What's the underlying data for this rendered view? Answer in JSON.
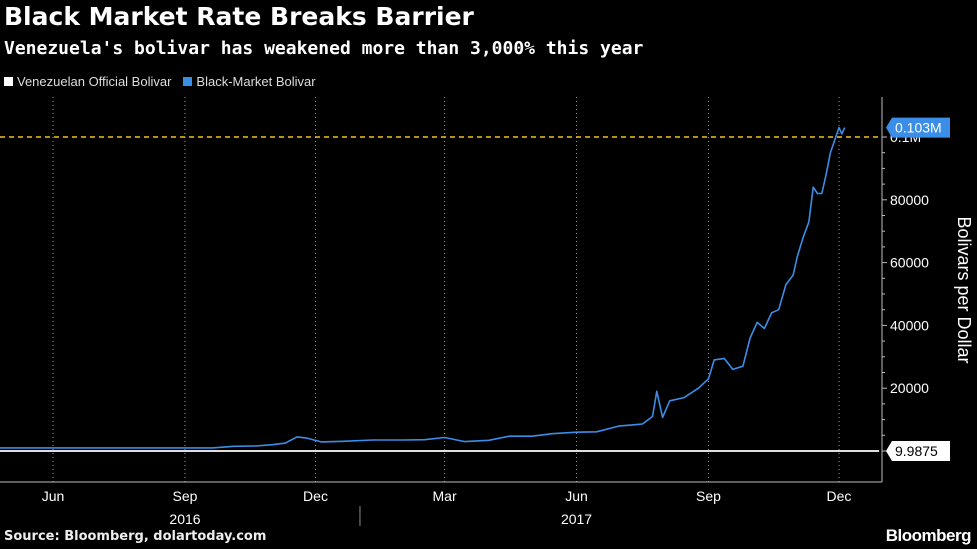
{
  "header": {
    "title": "Black Market Rate Breaks Barrier",
    "subtitle": "Venezuela's bolivar has weakened more than 3,000% this year"
  },
  "footer": {
    "source": "Source: Bloomberg, dolartoday.com",
    "brand": "Bloomberg"
  },
  "chart_data": {
    "type": "line",
    "ylabel": "Bolivars per Dollar",
    "ylim": [
      0,
      108000
    ],
    "yticks": [
      {
        "value": 20000,
        "label": "20000"
      },
      {
        "value": 40000,
        "label": "40000"
      },
      {
        "value": 60000,
        "label": "60000"
      },
      {
        "value": 80000,
        "label": "80000"
      },
      {
        "value": 100000,
        "label": "0.1M"
      }
    ],
    "xlim": [
      "2016-04-25",
      "2017-12-31"
    ],
    "xticks": [
      {
        "date": "2016-06-01",
        "label": "Jun"
      },
      {
        "date": "2016-09-01",
        "label": "Sep"
      },
      {
        "date": "2016-12-01",
        "label": "Dec"
      },
      {
        "date": "2017-03-01",
        "label": "Mar"
      },
      {
        "date": "2017-06-01",
        "label": "Jun"
      },
      {
        "date": "2017-09-01",
        "label": "Sep"
      },
      {
        "date": "2017-12-01",
        "label": "Dec"
      }
    ],
    "year_labels": [
      {
        "label": "2016",
        "date": "2016-09-01"
      },
      {
        "label": "2017",
        "date": "2017-06-01"
      }
    ],
    "year_divider": "2017-01-01",
    "grid": true,
    "legend_position": "top-left",
    "reference_line": {
      "value": 100000,
      "color": "#f2c21b",
      "style": "dashed"
    },
    "end_labels": [
      {
        "label": "0.103M",
        "value": 103000,
        "color": "#3b8ee8"
      },
      {
        "label": "9.9875",
        "value": 10,
        "color": "#ffffff"
      }
    ],
    "series": [
      {
        "name": "Venezuelan Official Bolivar",
        "color": "#ffffff",
        "x": [
          "2016-04-25",
          "2017-12-29"
        ],
        "y": [
          10,
          10
        ]
      },
      {
        "name": "Black-Market Bolivar",
        "color": "#3b8ee8",
        "x": [
          "2016-04-25",
          "2016-05-15",
          "2016-06-15",
          "2016-07-15",
          "2016-08-15",
          "2016-09-01",
          "2016-09-20",
          "2016-10-05",
          "2016-10-20",
          "2016-11-01",
          "2016-11-10",
          "2016-11-18",
          "2016-11-25",
          "2016-12-05",
          "2016-12-20",
          "2017-01-10",
          "2017-01-31",
          "2017-02-15",
          "2017-03-01",
          "2017-03-15",
          "2017-04-01",
          "2017-04-15",
          "2017-05-01",
          "2017-05-15",
          "2017-06-01",
          "2017-06-15",
          "2017-07-01",
          "2017-07-10",
          "2017-07-17",
          "2017-07-24",
          "2017-07-27",
          "2017-07-31",
          "2017-08-05",
          "2017-08-15",
          "2017-08-25",
          "2017-09-01",
          "2017-09-05",
          "2017-09-12",
          "2017-09-18",
          "2017-09-25",
          "2017-09-30",
          "2017-10-05",
          "2017-10-10",
          "2017-10-15",
          "2017-10-20",
          "2017-10-25",
          "2017-10-30",
          "2017-11-02",
          "2017-11-06",
          "2017-11-10",
          "2017-11-13",
          "2017-11-16",
          "2017-11-19",
          "2017-11-22",
          "2017-11-25",
          "2017-11-28",
          "2017-12-01",
          "2017-12-03",
          "2017-12-05"
        ],
        "y": [
          1000,
          1000,
          1000,
          1000,
          1000,
          1000,
          1000,
          1500,
          1600,
          2000,
          2500,
          4500,
          4100,
          2900,
          3100,
          3500,
          3500,
          3600,
          4300,
          3000,
          3400,
          4700,
          4700,
          5500,
          6000,
          6100,
          8000,
          8300,
          8600,
          11000,
          19000,
          10700,
          16000,
          17000,
          20000,
          23000,
          29000,
          29500,
          26000,
          27000,
          36000,
          41000,
          39000,
          44000,
          45000,
          53000,
          56000,
          62000,
          68000,
          73000,
          84000,
          82000,
          82000,
          88000,
          95000,
          99000,
          103000,
          101000,
          103000
        ]
      }
    ]
  }
}
